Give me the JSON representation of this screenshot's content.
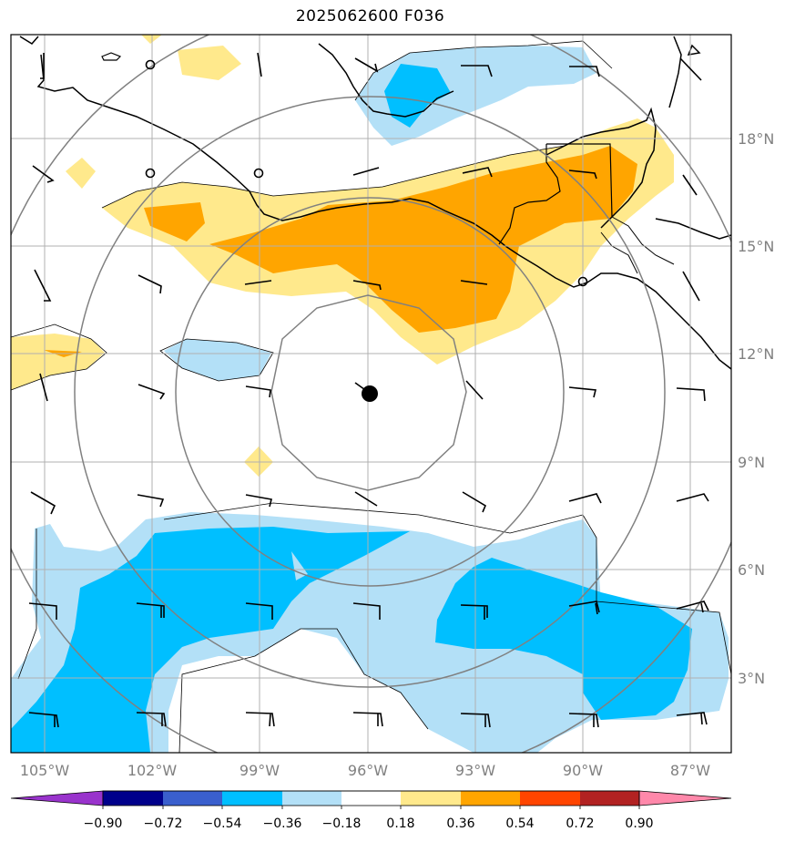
{
  "title": "2025062600 F036",
  "map": {
    "lon_ticks": [
      "105°W",
      "102°W",
      "99°W",
      "96°W",
      "93°W",
      "90°W",
      "87°W"
    ],
    "lat_ticks": [
      "3°N",
      "6°N",
      "9°N",
      "12°N",
      "15°N",
      "18°N"
    ],
    "lon_range": [
      -106,
      -86
    ],
    "lat_range": [
      1,
      21
    ],
    "storm_center": {
      "lon": -96.0,
      "lat": 10.9
    },
    "range_rings": [
      "inner",
      "ring2",
      "ring3",
      "ring4"
    ],
    "fill_colors": {
      "pos_light": "#ffe98c",
      "pos_dark": "#ffa500",
      "neg_light": "#b3e0f7",
      "neg_dark": "#00bfff"
    }
  },
  "colorbar": {
    "labels": [
      "−0.90",
      "−0.72",
      "−0.54",
      "−0.36",
      "−0.18",
      "0.18",
      "0.36",
      "0.54",
      "0.72",
      "0.90"
    ],
    "colors": [
      "#9933cc",
      "#00008b",
      "#3a5fcd",
      "#00bfff",
      "#b3e0f7",
      "#ffffff",
      "#ffe98c",
      "#ffa500",
      "#ff4500",
      "#b22222",
      "#ff88aa"
    ]
  }
}
